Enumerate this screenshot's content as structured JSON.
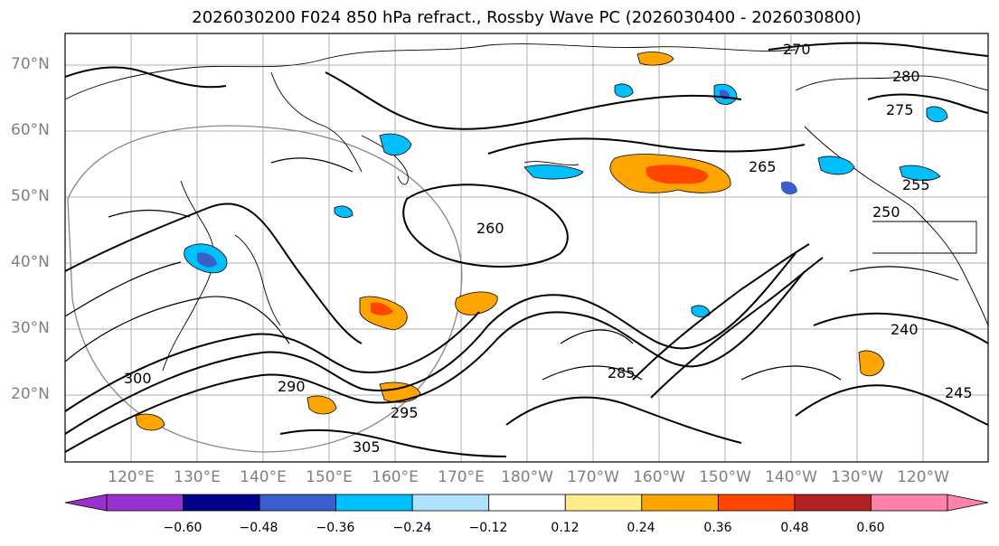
{
  "title": "2026030200 F024 850 hPa refract., Rossby Wave PC (2026030400 - 2026030800)",
  "lat_labels": [
    "70°N",
    "60°N",
    "50°N",
    "40°N",
    "30°N",
    "20°N"
  ],
  "lon_labels": [
    "120°E",
    "130°E",
    "140°E",
    "150°E",
    "160°E",
    "170°E",
    "180°W",
    "170°W",
    "160°W",
    "150°W",
    "140°W",
    "130°W",
    "120°W"
  ],
  "contour_labels": [
    "270",
    "265",
    "260",
    "280",
    "275",
    "255",
    "250",
    "245",
    "240",
    "285",
    "290",
    "295",
    "300",
    "305"
  ],
  "colorbar": {
    "ticks": [
      "−0.60",
      "−0.48",
      "−0.36",
      "−0.24",
      "−0.12",
      "0.12",
      "0.24",
      "0.36",
      "0.48",
      "0.60"
    ],
    "colors": [
      "#9932cc",
      "#00008b",
      "#3a5fcd",
      "#00bfff",
      "#b0e2ff",
      "#ffffff",
      "#ffec8b",
      "#ffa500",
      "#ff4500",
      "#b22222",
      "#ff82ab"
    ]
  },
  "features": {
    "pos_anom_color": "#ffa500",
    "neg_anom_color": "#00bfff"
  }
}
